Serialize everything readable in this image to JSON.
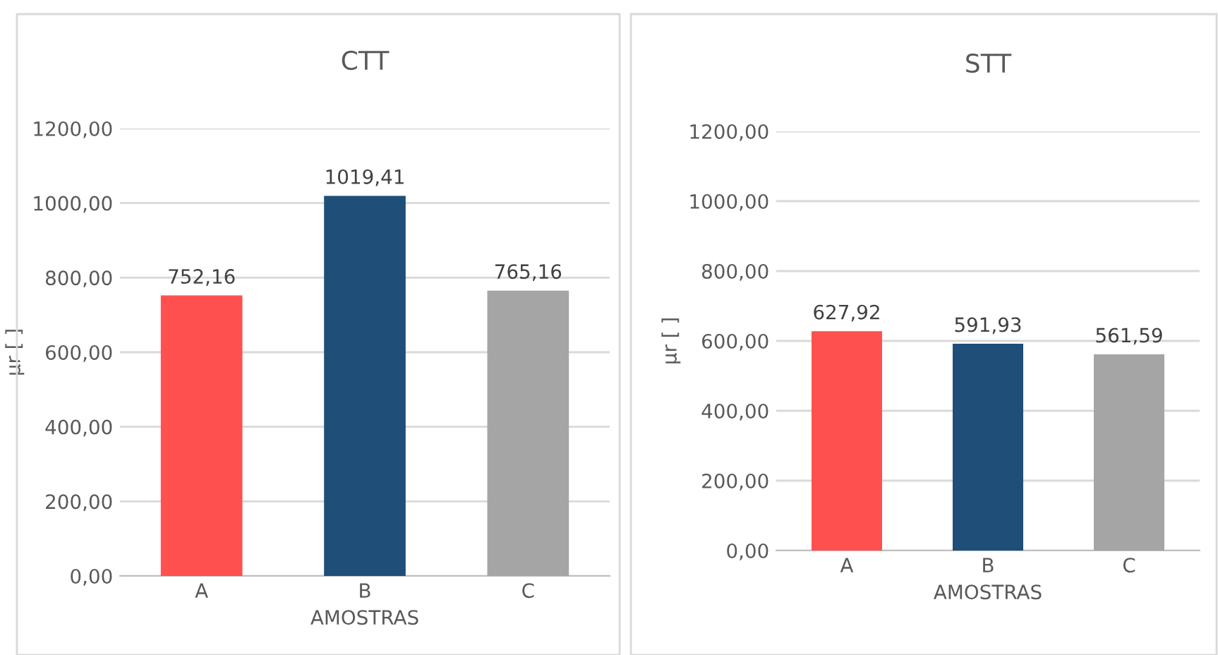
{
  "chart_data": [
    {
      "type": "bar",
      "title": "CTT",
      "xlabel": "AMOSTRAS",
      "ylabel": "μr [ ]",
      "categories": [
        "A",
        "B",
        "C"
      ],
      "values": [
        752.16,
        1019.41,
        765.16
      ],
      "colors": [
        "#ff5050",
        "#1f4e79",
        "#a5a5a5"
      ],
      "value_labels": [
        "752,16",
        "1019,41",
        "765,16"
      ],
      "ylim": [
        0,
        1200
      ],
      "yticks": [
        {
          "value": 0,
          "label": "0,00"
        },
        {
          "value": 200,
          "label": "200,00"
        },
        {
          "value": 400,
          "label": "400,00"
        },
        {
          "value": 600,
          "label": "600,00"
        },
        {
          "value": 800,
          "label": "800,00"
        },
        {
          "value": 1000,
          "label": "1000,00"
        },
        {
          "value": 1200,
          "label": "1200,00"
        }
      ],
      "grid": "y",
      "legend": false
    },
    {
      "type": "bar",
      "title": "STT",
      "xlabel": "AMOSTRAS",
      "ylabel": "μr [ ]",
      "categories": [
        "A",
        "B",
        "C"
      ],
      "values": [
        627.92,
        591.93,
        561.59
      ],
      "colors": [
        "#ff5050",
        "#1f4e79",
        "#a5a5a5"
      ],
      "value_labels": [
        "627,92",
        "591,93",
        "561,59"
      ],
      "ylim": [
        0,
        1200
      ],
      "yticks": [
        {
          "value": 0,
          "label": "0,00"
        },
        {
          "value": 200,
          "label": "200,00"
        },
        {
          "value": 400,
          "label": "400,00"
        },
        {
          "value": 600,
          "label": "600,00"
        },
        {
          "value": 800,
          "label": "800,00"
        },
        {
          "value": 1000,
          "label": "1000,00"
        },
        {
          "value": 1200,
          "label": "1200,00"
        }
      ],
      "grid": "y",
      "legend": false
    }
  ]
}
